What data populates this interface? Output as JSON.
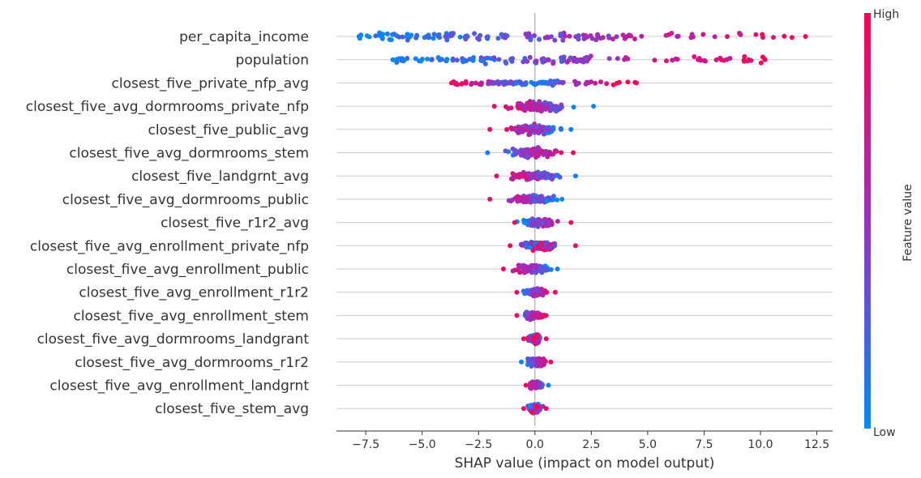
{
  "chart_data": {
    "type": "scatter",
    "subtype": "shap-beeswarm",
    "xlabel": "SHAP value (impact on model output)",
    "ylabel": "",
    "xlim": [
      -8.8,
      13.2
    ],
    "xticks": [
      -7.5,
      -5.0,
      -2.5,
      0.0,
      2.5,
      5.0,
      7.5,
      10.0,
      12.5
    ],
    "xtick_labels": [
      "−7.5",
      "−5.0",
      "−2.5",
      "0.0",
      "2.5",
      "5.0",
      "7.5",
      "10.0",
      "12.5"
    ],
    "grid": "horizontal",
    "colorbar": {
      "title": "Feature value",
      "high_label": "High",
      "low_label": "Low",
      "low_color": "#008bfb",
      "mid_color": "#9c2fc1",
      "high_color": "#ff0052"
    },
    "features": [
      {
        "name": "per_capita_income",
        "min": -7.8,
        "max": 12.0,
        "width": 1.0,
        "pattern": "low_left"
      },
      {
        "name": "population",
        "min": -6.3,
        "max": 10.2,
        "width": 0.85,
        "pattern": "low_left"
      },
      {
        "name": "closest_five_private_nfp_avg",
        "min": -3.7,
        "max": 4.5,
        "width": 0.55,
        "pattern": "tails_high"
      },
      {
        "name": "closest_five_avg_dormrooms_private_nfp",
        "min": -1.8,
        "max": 2.6,
        "width": 0.9,
        "pattern": "high_left"
      },
      {
        "name": "closest_five_public_avg",
        "min": -2.0,
        "max": 1.6,
        "width": 0.8,
        "pattern": "high_left"
      },
      {
        "name": "closest_five_avg_dormrooms_stem",
        "min": -2.1,
        "max": 1.7,
        "width": 0.75,
        "pattern": "low_left"
      },
      {
        "name": "closest_five_landgrnt_avg",
        "min": -1.7,
        "max": 1.8,
        "width": 0.75,
        "pattern": "high_left"
      },
      {
        "name": "closest_five_avg_dormrooms_public",
        "min": -2.0,
        "max": 1.2,
        "width": 0.7,
        "pattern": "high_left"
      },
      {
        "name": "closest_five_r1r2_avg",
        "min": -0.9,
        "max": 1.6,
        "width": 0.7,
        "pattern": "high_right"
      },
      {
        "name": "closest_five_avg_enrollment_private_nfp",
        "min": -1.1,
        "max": 1.8,
        "width": 0.7,
        "pattern": "mixed"
      },
      {
        "name": "closest_five_avg_enrollment_public",
        "min": -1.4,
        "max": 1.0,
        "width": 0.7,
        "pattern": "high_left"
      },
      {
        "name": "closest_five_avg_enrollment_r1r2",
        "min": -0.8,
        "max": 0.9,
        "width": 0.75,
        "pattern": "high_right"
      },
      {
        "name": "closest_five_avg_enrollment_stem",
        "min": -0.8,
        "max": 0.5,
        "width": 0.6,
        "pattern": "high_right"
      },
      {
        "name": "closest_five_avg_dormrooms_landgrant",
        "min": -0.5,
        "max": 0.5,
        "width": 0.8,
        "pattern": "mixed"
      },
      {
        "name": "closest_five_avg_dormrooms_r1r2",
        "min": -0.6,
        "max": 0.7,
        "width": 0.75,
        "pattern": "low_left"
      },
      {
        "name": "closest_five_avg_enrollment_landgrnt",
        "min": -0.4,
        "max": 0.6,
        "width": 0.65,
        "pattern": "high_left"
      },
      {
        "name": "closest_five_stem_avg",
        "min": -0.5,
        "max": 0.5,
        "width": 0.75,
        "pattern": "mixed"
      }
    ]
  }
}
